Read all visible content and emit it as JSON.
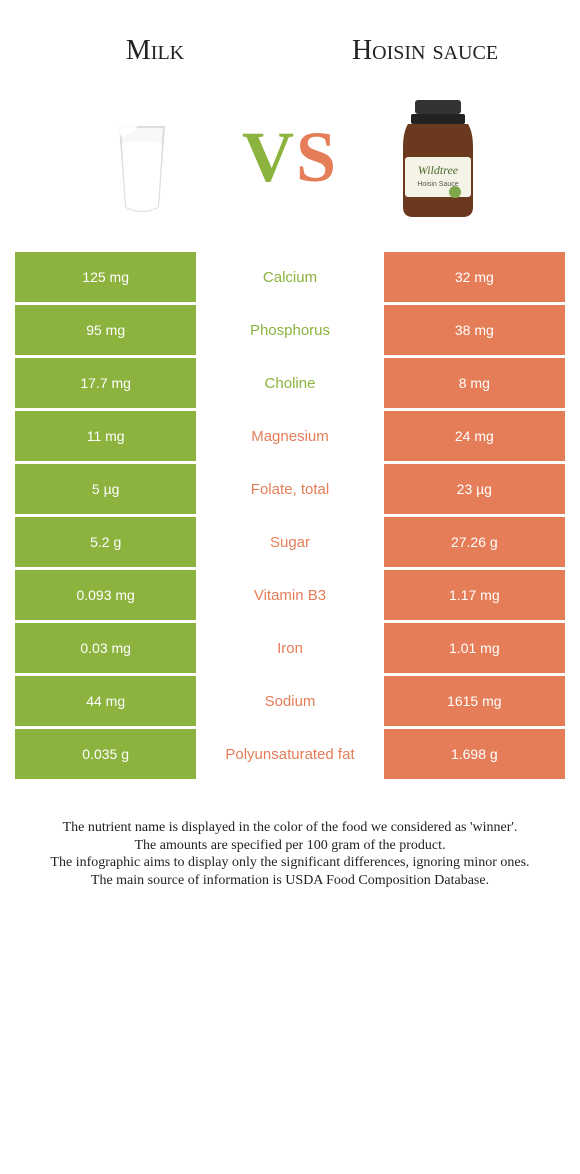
{
  "colors": {
    "left": "#8bb33d",
    "right": "#e57d58",
    "vs_left": "#8bb33d",
    "vs_right": "#e57d58"
  },
  "titles": {
    "left": "Milk",
    "right": "Hoisin sauce"
  },
  "vs_label": "VS",
  "table": {
    "rows": [
      {
        "left": "125 mg",
        "label": "Calcium",
        "right": "32 mg",
        "winner": "left"
      },
      {
        "left": "95 mg",
        "label": "Phosphorus",
        "right": "38 mg",
        "winner": "left"
      },
      {
        "left": "17.7 mg",
        "label": "Choline",
        "right": "8 mg",
        "winner": "left"
      },
      {
        "left": "11 mg",
        "label": "Magnesium",
        "right": "24 mg",
        "winner": "right"
      },
      {
        "left": "5 µg",
        "label": "Folate, total",
        "right": "23 µg",
        "winner": "right"
      },
      {
        "left": "5.2 g",
        "label": "Sugar",
        "right": "27.26 g",
        "winner": "right"
      },
      {
        "left": "0.093 mg",
        "label": "Vitamin B3",
        "right": "1.17 mg",
        "winner": "right"
      },
      {
        "left": "0.03 mg",
        "label": "Iron",
        "right": "1.01 mg",
        "winner": "right"
      },
      {
        "left": "44 mg",
        "label": "Sodium",
        "right": "1615 mg",
        "winner": "right"
      },
      {
        "left": "0.035 g",
        "label": "Polyunsaturated fat",
        "right": "1.698 g",
        "winner": "right"
      }
    ]
  },
  "notes": {
    "line1": "The nutrient name is displayed in the color of the food we considered as 'winner'.",
    "line2": "The amounts are specified per 100 gram of the product.",
    "line3": "The infographic aims to display only the significant differences, ignoring minor ones.",
    "line4": "The main source of information is USDA Food Composition Database."
  }
}
